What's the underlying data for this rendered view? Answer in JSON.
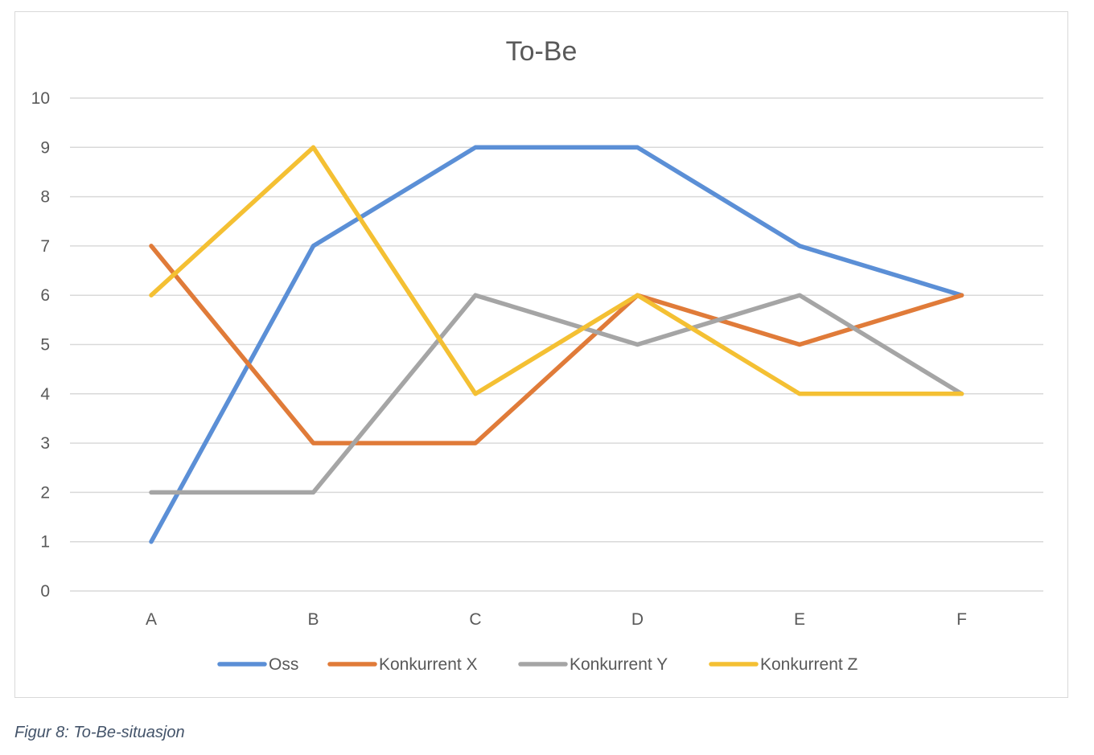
{
  "chart_data": {
    "type": "line",
    "title": "To-Be",
    "xlabel": "",
    "ylabel": "",
    "categories": [
      "A",
      "B",
      "C",
      "D",
      "E",
      "F"
    ],
    "ylim": [
      0,
      10
    ],
    "yticks": [
      0,
      1,
      2,
      3,
      4,
      5,
      6,
      7,
      8,
      9,
      10
    ],
    "grid": true,
    "legend_position": "bottom",
    "series": [
      {
        "name": "Oss",
        "color": "#5b8fd6",
        "values": [
          1,
          7,
          9,
          9,
          7,
          6
        ]
      },
      {
        "name": "Konkurrent X",
        "color": "#e07b39",
        "values": [
          7,
          3,
          3,
          6,
          5,
          6
        ]
      },
      {
        "name": "Konkurrent Y",
        "color": "#a5a5a5",
        "values": [
          2,
          2,
          6,
          5,
          6,
          4
        ]
      },
      {
        "name": "Konkurrent Z",
        "color": "#f4c033",
        "values": [
          6,
          9,
          4,
          6,
          4,
          4
        ]
      }
    ]
  },
  "caption": "Figur 8: To-Be-situasjon"
}
